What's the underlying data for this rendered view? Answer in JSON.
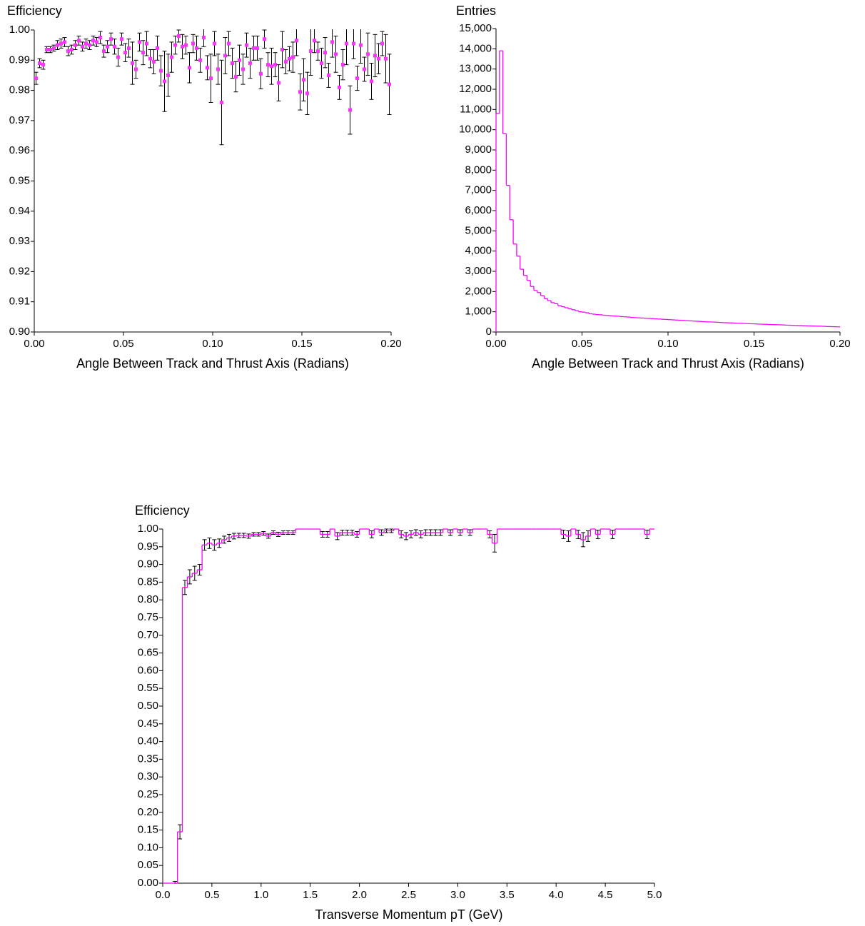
{
  "chart_data": [
    {
      "type": "scatter",
      "ylabel": "Efficiency",
      "xlabel": "Angle Between Track and Thrust Axis (Radians)",
      "color": "#ff33ff",
      "x": [
        0.001,
        0.003,
        0.005,
        0.007,
        0.009,
        0.011,
        0.013,
        0.015,
        0.017,
        0.019,
        0.021,
        0.023,
        0.025,
        0.027,
        0.029,
        0.031,
        0.033,
        0.035,
        0.037,
        0.039,
        0.041,
        0.043,
        0.045,
        0.047,
        0.049,
        0.051,
        0.053,
        0.055,
        0.057,
        0.059,
        0.061,
        0.063,
        0.065,
        0.067,
        0.069,
        0.071,
        0.073,
        0.075,
        0.077,
        0.079,
        0.081,
        0.083,
        0.085,
        0.087,
        0.089,
        0.091,
        0.093,
        0.095,
        0.097,
        0.099,
        0.101,
        0.103,
        0.105,
        0.107,
        0.109,
        0.111,
        0.113,
        0.115,
        0.117,
        0.119,
        0.121,
        0.123,
        0.125,
        0.127,
        0.129,
        0.131,
        0.133,
        0.135,
        0.137,
        0.139,
        0.141,
        0.143,
        0.145,
        0.147,
        0.149,
        0.151,
        0.153,
        0.155,
        0.157,
        0.159,
        0.161,
        0.163,
        0.165,
        0.167,
        0.169,
        0.171,
        0.173,
        0.175,
        0.177,
        0.179,
        0.181,
        0.183,
        0.185,
        0.187,
        0.189,
        0.191,
        0.193,
        0.195,
        0.197,
        0.199
      ],
      "values": [
        0.984,
        0.989,
        0.9885,
        0.9935,
        0.9935,
        0.994,
        0.995,
        0.9955,
        0.996,
        0.993,
        0.9935,
        0.995,
        0.9965,
        0.9945,
        0.9955,
        0.995,
        0.9965,
        0.996,
        0.9975,
        0.993,
        0.9945,
        0.997,
        0.9945,
        0.991,
        0.997,
        0.9925,
        0.994,
        0.989,
        0.987,
        0.996,
        0.9925,
        0.9955,
        0.9905,
        0.9895,
        0.994,
        0.9865,
        0.983,
        0.985,
        0.991,
        0.995,
        0.998,
        0.9945,
        0.995,
        0.9875,
        0.9955,
        0.994,
        0.99,
        0.9975,
        0.9875,
        0.984,
        0.9955,
        0.987,
        0.976,
        0.9915,
        0.9955,
        0.989,
        0.9845,
        0.99,
        0.987,
        0.995,
        0.989,
        0.994,
        0.994,
        0.9855,
        0.997,
        0.9885,
        0.988,
        0.9885,
        0.9825,
        0.9935,
        0.9895,
        0.9905,
        0.991,
        0.9965,
        0.9795,
        0.9835,
        0.979,
        0.993,
        0.9965,
        0.993,
        0.989,
        0.9925,
        0.985,
        0.996,
        0.992,
        0.981,
        0.9885,
        0.9955,
        0.9735,
        0.9955,
        0.984,
        0.995,
        0.987,
        0.992,
        0.983,
        0.9915,
        0.9905,
        0.9955,
        0.9905,
        0.982
      ],
      "errors": [
        0.002,
        0.0015,
        0.0015,
        0.001,
        0.001,
        0.001,
        0.0015,
        0.0015,
        0.0015,
        0.0015,
        0.0015,
        0.0015,
        0.0015,
        0.0015,
        0.0015,
        0.0015,
        0.0015,
        0.0015,
        0.002,
        0.002,
        0.002,
        0.002,
        0.0025,
        0.003,
        0.002,
        0.003,
        0.003,
        0.007,
        0.003,
        0.003,
        0.004,
        0.004,
        0.003,
        0.004,
        0.004,
        0.005,
        0.01,
        0.007,
        0.005,
        0.003,
        0.002,
        0.004,
        0.003,
        0.005,
        0.003,
        0.004,
        0.004,
        0.003,
        0.004,
        0.008,
        0.004,
        0.005,
        0.014,
        0.006,
        0.004,
        0.005,
        0.005,
        0.005,
        0.005,
        0.004,
        0.005,
        0.004,
        0.004,
        0.005,
        0.003,
        0.004,
        0.006,
        0.004,
        0.006,
        0.006,
        0.004,
        0.004,
        0.005,
        0.005,
        0.006,
        0.007,
        0.007,
        0.008,
        0.004,
        0.003,
        0.005,
        0.005,
        0.004,
        0.005,
        0.006,
        0.004,
        0.005,
        0.007,
        0.008,
        0.005,
        0.004,
        0.006,
        0.004,
        0.007,
        0.006,
        0.007,
        0.005,
        0.004,
        0.008,
        0.01
      ],
      "xlim": [
        0,
        0.2
      ],
      "ylim": [
        0.9,
        1.0
      ],
      "xticks": [
        {
          "value": 0,
          "label": "0.00"
        },
        0.05,
        {
          "value": 0.1,
          "label": "0.10"
        },
        0.15,
        {
          "value": 0.2,
          "label": "0.20"
        }
      ],
      "yticks": [
        {
          "value": 0.9,
          "label": "0.90"
        },
        0.91,
        0.92,
        0.93,
        0.94,
        0.95,
        0.96,
        0.97,
        0.98,
        0.99,
        {
          "value": 1.0,
          "label": "1.00"
        }
      ]
    },
    {
      "type": "histogram",
      "ylabel": "Entries",
      "xlabel": "Angle Between Track and Thrust Axis (Radians)",
      "color": "#ff00ff",
      "bins": [
        0,
        0.002,
        0.004,
        0.006,
        0.008,
        0.01,
        0.012,
        0.014,
        0.016,
        0.018,
        0.02,
        0.022,
        0.024,
        0.026,
        0.028,
        0.03,
        0.032,
        0.034,
        0.036,
        0.038,
        0.04,
        0.042,
        0.044,
        0.046,
        0.048,
        0.05,
        0.052,
        0.054,
        0.056,
        0.058,
        0.06,
        0.062,
        0.064,
        0.066,
        0.068,
        0.07,
        0.072,
        0.074,
        0.076,
        0.078,
        0.08,
        0.082,
        0.084,
        0.086,
        0.088,
        0.09,
        0.092,
        0.094,
        0.096,
        0.098,
        0.1,
        0.102,
        0.104,
        0.106,
        0.108,
        0.11,
        0.112,
        0.114,
        0.116,
        0.118,
        0.12,
        0.122,
        0.124,
        0.126,
        0.128,
        0.13,
        0.132,
        0.134,
        0.136,
        0.138,
        0.14,
        0.142,
        0.144,
        0.146,
        0.148,
        0.15,
        0.152,
        0.154,
        0.156,
        0.158,
        0.16,
        0.162,
        0.164,
        0.166,
        0.168,
        0.17,
        0.172,
        0.174,
        0.176,
        0.178,
        0.18,
        0.182,
        0.184,
        0.186,
        0.188,
        0.19,
        0.192,
        0.194,
        0.196,
        0.198,
        0.2
      ],
      "values": [
        10800,
        13900,
        9800,
        7250,
        5550,
        4350,
        3750,
        3100,
        2800,
        2550,
        2250,
        2050,
        1950,
        1800,
        1650,
        1550,
        1450,
        1400,
        1300,
        1250,
        1200,
        1150,
        1100,
        1050,
        1000,
        980,
        950,
        900,
        880,
        860,
        850,
        830,
        820,
        800,
        790,
        780,
        760,
        750,
        740,
        720,
        710,
        700,
        690,
        680,
        670,
        660,
        650,
        640,
        630,
        620,
        610,
        600,
        590,
        580,
        570,
        560,
        550,
        540,
        530,
        520,
        510,
        500,
        495,
        490,
        480,
        470,
        460,
        455,
        450,
        440,
        430,
        425,
        420,
        410,
        405,
        400,
        390,
        385,
        380,
        370,
        365,
        360,
        355,
        350,
        340,
        335,
        330,
        325,
        320,
        310,
        305,
        300,
        295,
        290,
        285,
        280,
        270,
        265,
        260,
        255
      ],
      "xlim": [
        0,
        0.2
      ],
      "ylim": [
        0,
        15000
      ],
      "xticks": [
        {
          "value": 0,
          "label": "0.00"
        },
        0.05,
        {
          "value": 0.1,
          "label": "0.10"
        },
        0.15,
        {
          "value": 0.2,
          "label": "0.20"
        }
      ],
      "yticks": [
        0,
        {
          "value": 1000,
          "label": "1,000"
        },
        {
          "value": 2000,
          "label": "2,000"
        },
        {
          "value": 3000,
          "label": "3,000"
        },
        {
          "value": 4000,
          "label": "4,000"
        },
        {
          "value": 5000,
          "label": "5,000"
        },
        {
          "value": 6000,
          "label": "6,000"
        },
        {
          "value": 7000,
          "label": "7,000"
        },
        {
          "value": 8000,
          "label": "8,000"
        },
        {
          "value": 9000,
          "label": "9,000"
        },
        {
          "value": 10000,
          "label": "10,000"
        },
        {
          "value": 11000,
          "label": "11,000"
        },
        {
          "value": 12000,
          "label": "12,000"
        },
        {
          "value": 13000,
          "label": "13,000"
        },
        {
          "value": 14000,
          "label": "14,000"
        },
        {
          "value": 15000,
          "label": "15,000"
        }
      ]
    },
    {
      "type": "histogram",
      "ylabel": "Efficiency",
      "xlabel": "Transverse Momentum pT (GeV)",
      "color": "#ff00ff",
      "bins": [
        0,
        0.05,
        0.1,
        0.15,
        0.2,
        0.25,
        0.3,
        0.35,
        0.4,
        0.45,
        0.5,
        0.55,
        0.6,
        0.65,
        0.7,
        0.75,
        0.8,
        0.85,
        0.9,
        0.95,
        1,
        1.05,
        1.1,
        1.15,
        1.2,
        1.25,
        1.3,
        1.35,
        1.4,
        1.45,
        1.5,
        1.55,
        1.6,
        1.65,
        1.7,
        1.75,
        1.8,
        1.85,
        1.9,
        1.95,
        2,
        2.05,
        2.1,
        2.15,
        2.2,
        2.25,
        2.3,
        2.35,
        2.4,
        2.45,
        2.5,
        2.55,
        2.6,
        2.65,
        2.7,
        2.75,
        2.8,
        2.85,
        2.9,
        2.95,
        3,
        3.05,
        3.1,
        3.15,
        3.2,
        3.25,
        3.3,
        3.35,
        3.4,
        3.45,
        3.5,
        3.55,
        3.6,
        3.65,
        3.7,
        3.75,
        3.8,
        3.85,
        3.9,
        3.95,
        4,
        4.05,
        4.1,
        4.15,
        4.2,
        4.25,
        4.3,
        4.35,
        4.4,
        4.45,
        4.5,
        4.55,
        4.6,
        4.65,
        4.7,
        4.75,
        4.8,
        4.85,
        4.9,
        4.95,
        5
      ],
      "values": [
        0,
        0,
        0,
        0.145,
        0.835,
        0.865,
        0.875,
        0.885,
        0.955,
        0.96,
        0.955,
        0.96,
        0.97,
        0.975,
        0.98,
        0.982,
        0.982,
        0.98,
        0.985,
        0.985,
        0.988,
        0.98,
        0.99,
        0.985,
        0.99,
        0.99,
        0.99,
        1,
        1,
        1,
        1,
        1,
        0.985,
        0.985,
        1,
        0.98,
        0.99,
        0.99,
        0.99,
        0.985,
        1,
        1,
        0.985,
        1,
        0.99,
        0.995,
        0.995,
        1,
        0.985,
        0.98,
        0.985,
        0.99,
        0.985,
        0.99,
        0.99,
        0.99,
        0.99,
        1,
        0.99,
        1,
        0.99,
        1,
        0.99,
        1,
        1,
        1,
        0.985,
        0.96,
        1,
        1,
        1,
        1,
        1,
        1,
        1,
        1,
        1,
        1,
        1,
        1,
        1,
        0.985,
        0.98,
        1,
        0.985,
        0.97,
        0.98,
        1,
        0.985,
        1,
        1,
        0.985,
        1,
        1,
        1,
        1,
        1,
        1,
        0.985,
        1
      ],
      "errors": [
        0,
        0,
        0.005,
        0.02,
        0.02,
        0.02,
        0.02,
        0.015,
        0.015,
        0.015,
        0.015,
        0.012,
        0.01,
        0.01,
        0.008,
        0.006,
        0.006,
        0.006,
        0.005,
        0.005,
        0.005,
        0.006,
        0.005,
        0.006,
        0.005,
        0.005,
        0.005,
        0,
        0,
        0,
        0,
        0,
        0.008,
        0.008,
        0,
        0.01,
        0.007,
        0.007,
        0.007,
        0.008,
        0,
        0,
        0.01,
        0,
        0.008,
        0.005,
        0.005,
        0,
        0.01,
        0.01,
        0.01,
        0.008,
        0.01,
        0.008,
        0.008,
        0.008,
        0.008,
        0,
        0.008,
        0,
        0.008,
        0,
        0.008,
        0,
        0,
        0,
        0.01,
        0.025,
        0,
        0,
        0,
        0,
        0,
        0,
        0,
        0,
        0,
        0,
        0,
        0,
        0,
        0.012,
        0.015,
        0,
        0.012,
        0.02,
        0.015,
        0,
        0.012,
        0,
        0,
        0.012,
        0,
        0,
        0,
        0,
        0,
        0,
        0.012,
        0
      ],
      "xlim": [
        0,
        5
      ],
      "ylim": [
        0,
        1
      ],
      "xticks": [
        {
          "value": 0,
          "label": "0.0"
        },
        0.5,
        {
          "value": 1,
          "label": "1.0"
        },
        1.5,
        {
          "value": 2,
          "label": "2.0"
        },
        2.5,
        {
          "value": 3,
          "label": "3.0"
        },
        3.5,
        {
          "value": 4,
          "label": "4.0"
        },
        4.5,
        {
          "value": 5,
          "label": "5.0"
        }
      ],
      "yticks": [
        {
          "value": 0,
          "label": "0.00"
        },
        0.05,
        {
          "value": 0.1,
          "label": "0.10"
        },
        0.15,
        {
          "value": 0.2,
          "label": "0.20"
        },
        0.25,
        {
          "value": 0.3,
          "label": "0.30"
        },
        0.35,
        {
          "value": 0.4,
          "label": "0.40"
        },
        0.45,
        {
          "value": 0.5,
          "label": "0.50"
        },
        0.55,
        {
          "value": 0.6,
          "label": "0.60"
        },
        0.65,
        {
          "value": 0.7,
          "label": "0.70"
        },
        0.75,
        {
          "value": 0.8,
          "label": "0.80"
        },
        0.85,
        {
          "value": 0.9,
          "label": "0.90"
        },
        0.95,
        {
          "value": 1,
          "label": "1.00"
        }
      ]
    }
  ]
}
